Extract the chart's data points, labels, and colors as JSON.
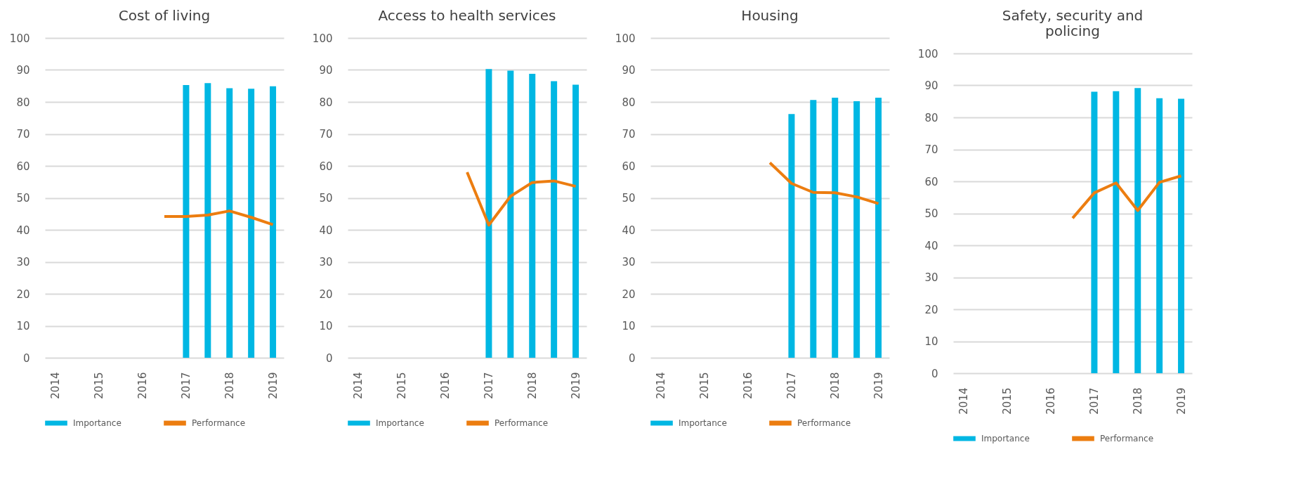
{
  "chart_data": [
    {
      "type": "bar",
      "title": "Cost of living",
      "categories": [
        "2014",
        null,
        "2015",
        null,
        "2016",
        null,
        "2017",
        null,
        "2018",
        null,
        "2019"
      ],
      "ylim": [
        0,
        100
      ],
      "yticks": [
        0,
        10,
        20,
        30,
        40,
        50,
        60,
        70,
        80,
        90,
        100
      ],
      "grid": "y",
      "legend": "bottom",
      "series": [
        {
          "name": "Importance",
          "color": "#00b7e3",
          "values": [
            null,
            null,
            null,
            null,
            null,
            null,
            85.3,
            85.9,
            84.3,
            84.1,
            84.9
          ]
        },
        {
          "name": "Performance",
          "type": "line",
          "color": "#ec7d10",
          "values": [
            null,
            null,
            null,
            null,
            null,
            44.2,
            44.2,
            44.6,
            45.9,
            43.9,
            41.6
          ]
        }
      ]
    },
    {
      "type": "bar",
      "title": "Access to health services",
      "categories": [
        "2014",
        null,
        "2015",
        null,
        "2016",
        null,
        "2017",
        null,
        "2018",
        null,
        "2019"
      ],
      "ylim": [
        0,
        100
      ],
      "yticks": [
        0,
        10,
        20,
        30,
        40,
        50,
        60,
        70,
        80,
        90,
        100
      ],
      "grid": "y",
      "legend": "bottom",
      "series": [
        {
          "name": "Importance",
          "color": "#00b7e3",
          "values": [
            null,
            null,
            null,
            null,
            null,
            null,
            90.3,
            89.8,
            88.8,
            86.5,
            85.4
          ]
        },
        {
          "name": "Performance",
          "type": "line",
          "color": "#ec7d10",
          "values": [
            null,
            null,
            null,
            null,
            null,
            58.0,
            41.5,
            50.5,
            54.8,
            55.3,
            53.6
          ]
        }
      ]
    },
    {
      "type": "bar",
      "title": "Housing",
      "categories": [
        "2014",
        null,
        "2015",
        null,
        "2016",
        null,
        "2017",
        null,
        "2018",
        null,
        "2019"
      ],
      "ylim": [
        0,
        100
      ],
      "yticks": [
        0,
        10,
        20,
        30,
        40,
        50,
        60,
        70,
        80,
        90,
        100
      ],
      "grid": "y",
      "legend": "bottom",
      "series": [
        {
          "name": "Importance",
          "color": "#00b7e3",
          "values": [
            null,
            null,
            null,
            null,
            null,
            null,
            76.2,
            80.6,
            81.3,
            80.2,
            81.3
          ]
        },
        {
          "name": "Performance",
          "type": "line",
          "color": "#ec7d10",
          "values": [
            null,
            null,
            null,
            null,
            null,
            61.0,
            54.5,
            51.7,
            51.6,
            50.3,
            48.2
          ]
        }
      ]
    },
    {
      "type": "bar",
      "title": "Safety, security and policing",
      "categories": [
        "2014",
        null,
        "2015",
        null,
        "2016",
        null,
        "2017",
        null,
        "2018",
        null,
        "2019"
      ],
      "ylim": [
        0,
        100
      ],
      "yticks": [
        0,
        10,
        20,
        30,
        40,
        50,
        60,
        70,
        80,
        90,
        100
      ],
      "grid": "y",
      "legend": "bottom",
      "series": [
        {
          "name": "Importance",
          "color": "#00b7e3",
          "values": [
            null,
            null,
            null,
            null,
            null,
            null,
            88.0,
            88.2,
            89.2,
            86.0,
            85.8
          ]
        },
        {
          "name": "Performance",
          "type": "line",
          "color": "#ec7d10",
          "values": [
            null,
            null,
            null,
            null,
            null,
            48.5,
            56.4,
            59.5,
            50.9,
            59.7,
            61.7
          ]
        }
      ]
    }
  ]
}
